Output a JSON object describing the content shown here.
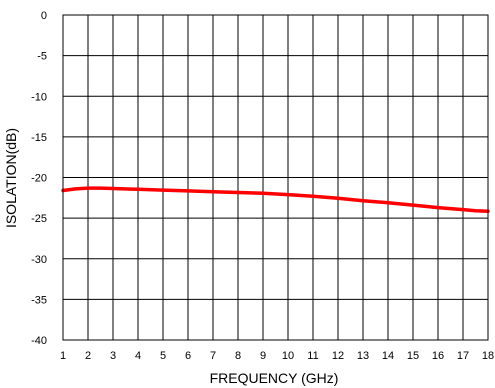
{
  "chart_data": {
    "type": "line",
    "title": "",
    "xlabel": "FREQUENCY (GHz)",
    "ylabel": "ISOLATION(dB)",
    "xlim": [
      1,
      18
    ],
    "ylim": [
      -40,
      0
    ],
    "x_ticks": [
      1,
      2,
      3,
      4,
      5,
      6,
      7,
      8,
      9,
      10,
      11,
      12,
      13,
      14,
      15,
      16,
      17,
      18
    ],
    "y_ticks": [
      0,
      -5,
      -10,
      -15,
      -20,
      -25,
      -30,
      -35,
      -40
    ],
    "grid": true,
    "series": [
      {
        "color": "#ff0000",
        "x": [
          1,
          1.5,
          2,
          2.5,
          3,
          4,
          5,
          6,
          7,
          8,
          9,
          10,
          11,
          12,
          13,
          14,
          15,
          16,
          17,
          17.5,
          18
        ],
        "y": [
          -21.6,
          -21.4,
          -21.3,
          -21.3,
          -21.35,
          -21.45,
          -21.55,
          -21.65,
          -21.75,
          -21.85,
          -21.95,
          -22.1,
          -22.3,
          -22.55,
          -22.85,
          -23.1,
          -23.4,
          -23.7,
          -23.95,
          -24.1,
          -24.15
        ]
      }
    ]
  }
}
